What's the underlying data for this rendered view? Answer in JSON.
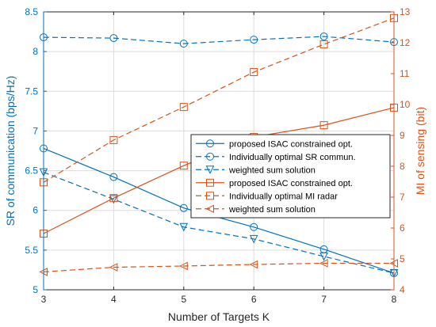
{
  "chart_data": {
    "type": "line",
    "xlabel": "Number of Targets K",
    "ylabel_left": "SR of communication (bps/Hz)",
    "ylabel_right": "MI of sensing (bit)",
    "x": [
      3,
      4,
      5,
      6,
      7,
      8
    ],
    "xlim": [
      3,
      8
    ],
    "ylim_left": [
      5,
      8.5
    ],
    "ylim_right": [
      4,
      13
    ],
    "x_ticks": [
      "3",
      "4",
      "5",
      "6",
      "7",
      "8"
    ],
    "y_ticks_left": [
      "5",
      "5.5",
      "6",
      "6.5",
      "7",
      "7.5",
      "8",
      "8.5"
    ],
    "y_ticks_right": [
      "4",
      "5",
      "6",
      "7",
      "8",
      "9",
      "10",
      "11",
      "12",
      "13"
    ],
    "grid": true,
    "legend_position": "center-right",
    "colors": {
      "left": "#0072BD",
      "right": "#D95319"
    },
    "series": [
      {
        "name": "proposed ISAC constrained opt.",
        "axis": "left",
        "style": "solid",
        "marker": "circle",
        "values": [
          6.78,
          6.42,
          6.03,
          5.79,
          5.51,
          5.21
        ]
      },
      {
        "name": "Individually optimal SR commun.",
        "axis": "left",
        "style": "dashed",
        "marker": "circle",
        "values": [
          8.18,
          8.17,
          8.1,
          8.15,
          8.19,
          8.12
        ]
      },
      {
        "name": "weighted sum solution",
        "axis": "left",
        "style": "dashed",
        "marker": "triangle-down",
        "values": [
          6.48,
          6.14,
          5.79,
          5.64,
          5.42,
          5.21
        ]
      },
      {
        "name": "proposed ISAC constrained opt.",
        "axis": "right",
        "style": "solid",
        "marker": "square",
        "values": [
          5.82,
          6.97,
          8.02,
          8.95,
          9.33,
          9.9
        ]
      },
      {
        "name": "Individually optimal MI radar",
        "axis": "right",
        "style": "dashed",
        "marker": "square",
        "values": [
          7.48,
          8.85,
          9.92,
          11.05,
          11.95,
          12.8
        ]
      },
      {
        "name": "weighted sum solution",
        "axis": "right",
        "style": "dashed",
        "marker": "triangle-left",
        "values": [
          4.58,
          4.73,
          4.77,
          4.82,
          4.86,
          4.86
        ]
      }
    ]
  }
}
